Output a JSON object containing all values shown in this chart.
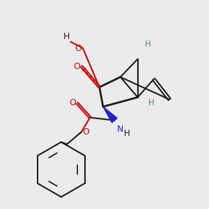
{
  "bg_color": "#ebebeb",
  "bond_color": "#1a1a1a",
  "o_color": "#cc0000",
  "n_color": "#2222cc",
  "h_stereo_color": "#4a8888",
  "lw": 1.5,
  "figsize": [
    3.0,
    3.0
  ],
  "dpi": 100,
  "xlim": [
    0.0,
    1.0
  ],
  "ylim": [
    0.0,
    1.0
  ]
}
